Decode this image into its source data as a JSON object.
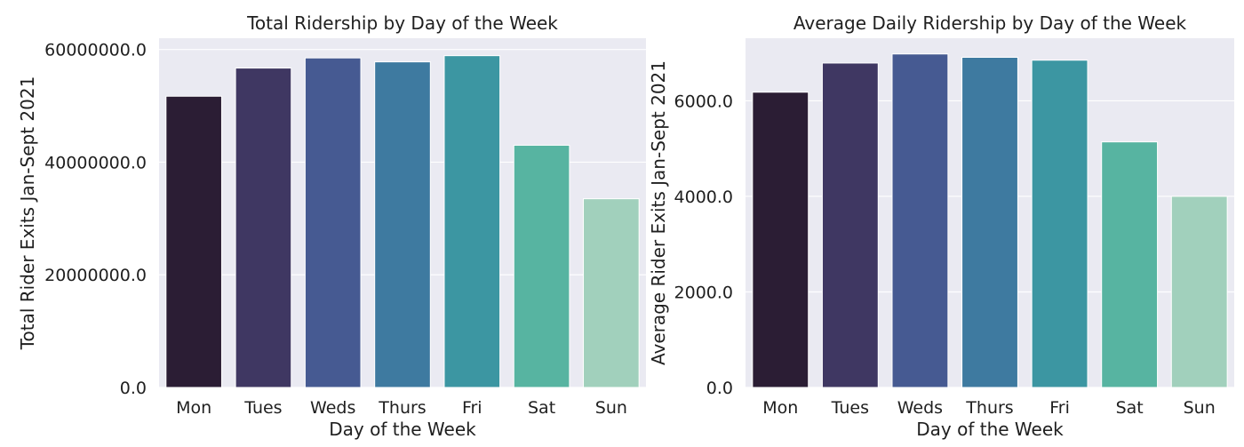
{
  "chart_data": [
    {
      "type": "bar",
      "title": "Total Ridership by Day of the Week",
      "xlabel": "Day of the Week",
      "ylabel": "Total Rider Exits Jan-Sept 2021",
      "categories": [
        "Mon",
        "Tues",
        "Weds",
        "Thurs",
        "Fri",
        "Sat",
        "Sun"
      ],
      "values": [
        51700000,
        56700000,
        58500000,
        57800000,
        58900000,
        43000000,
        33500000
      ],
      "yticks": [
        0,
        20000000,
        40000000,
        60000000
      ],
      "ytick_labels": [
        "0.0",
        "20000000.0",
        "40000000.0",
        "60000000.0"
      ],
      "ylim": [
        0,
        62000000
      ],
      "grid": true,
      "colors": [
        "#2b1d34",
        "#3f3762",
        "#465a92",
        "#3e7aa0",
        "#3c96a2",
        "#57b4a1",
        "#a1d0bc"
      ]
    },
    {
      "type": "bar",
      "title": "Average Daily Ridership by Day of the Week",
      "xlabel": "Day of the Week",
      "ylabel": "Average Rider Exits Jan-Sept 2021",
      "categories": [
        "Mon",
        "Tues",
        "Weds",
        "Thurs",
        "Fri",
        "Sat",
        "Sun"
      ],
      "values": [
        6180,
        6790,
        6980,
        6910,
        6850,
        5140,
        4000
      ],
      "yticks": [
        0,
        2000,
        4000,
        6000
      ],
      "ytick_labels": [
        "0.0",
        "2000.0",
        "4000.0",
        "6000.0"
      ],
      "ylim": [
        0,
        7310
      ],
      "grid": true,
      "colors": [
        "#2b1d34",
        "#3f3762",
        "#465a92",
        "#3e7aa0",
        "#3c96a2",
        "#57b4a1",
        "#a1d0bc"
      ]
    }
  ]
}
